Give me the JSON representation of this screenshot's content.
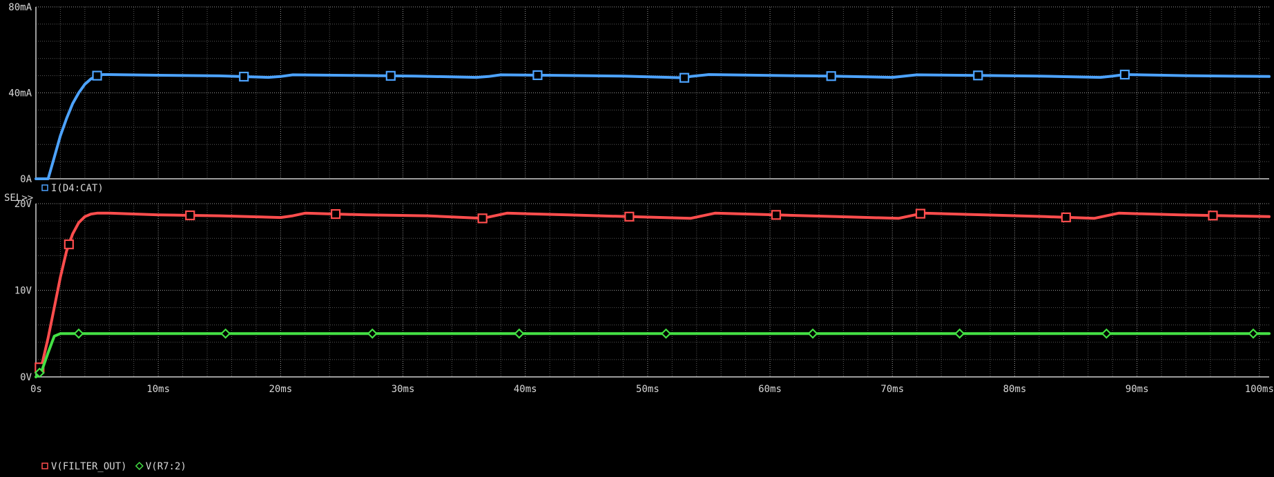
{
  "colors": {
    "background": "#000000",
    "axis": "#cfcfcf",
    "grid_major": "#9a9a9a",
    "grid_minor": "#5a5a5a",
    "label": "#d8d8d8",
    "current_trace": "#4da3ff",
    "filter_out_trace": "#ff4d4d",
    "r7_trace": "#44e044"
  },
  "sel_marker": "SEL>>",
  "chart_data": [
    {
      "type": "line",
      "title": "",
      "xlabel": "",
      "ylabel": "",
      "xlim": [
        0,
        100.8
      ],
      "ylim": [
        0,
        80
      ],
      "x_ticks": [
        0,
        10,
        20,
        30,
        40,
        50,
        60,
        70,
        80,
        90,
        100
      ],
      "x_tick_labels": [
        "0s",
        "10ms",
        "20ms",
        "30ms",
        "40ms",
        "50ms",
        "60ms",
        "70ms",
        "80ms",
        "90ms",
        "100ms"
      ],
      "y_ticks": [
        0,
        40,
        80
      ],
      "y_tick_labels": [
        "0A",
        "40mA",
        "80mA"
      ],
      "grid": true,
      "legend_position": "bottom-left",
      "series": [
        {
          "name": "I(D4:CAT)",
          "marker": "square",
          "color": "#4da3ff",
          "x": [
            0,
            0.5,
            1.0,
            1.5,
            2.0,
            2.5,
            3.0,
            3.5,
            4.0,
            4.5,
            5.0,
            5.5,
            6.0,
            10.0,
            15.0,
            19.0,
            20.0,
            21.0,
            26.0,
            31.0,
            36.0,
            37.0,
            38.0,
            43.0,
            48.0,
            53.0,
            53.5,
            55.0,
            60.0,
            65.0,
            70.0,
            71.0,
            72.0,
            77.0,
            82.0,
            87.0,
            88.0,
            89.0,
            94.0,
            100.8
          ],
          "y": [
            0,
            0,
            0,
            10,
            20,
            28,
            35,
            40,
            44,
            46.5,
            48,
            48.5,
            48.5,
            48.2,
            47.9,
            47.2,
            47.6,
            48.4,
            48.1,
            47.8,
            47.2,
            47.6,
            48.4,
            48.1,
            47.8,
            47.0,
            47.6,
            48.5,
            48.1,
            47.8,
            47.2,
            47.8,
            48.4,
            48.1,
            47.8,
            47.2,
            47.8,
            48.5,
            48.0,
            47.6
          ],
          "marker_x": [
            5.0,
            17.0,
            29.0,
            41.0,
            53.0,
            65.0,
            77.0,
            89.0
          ]
        }
      ]
    },
    {
      "type": "line",
      "title": "",
      "xlabel": "",
      "ylabel": "",
      "xlim": [
        0,
        100.8
      ],
      "ylim": [
        0,
        20
      ],
      "x_ticks": [
        0,
        10,
        20,
        30,
        40,
        50,
        60,
        70,
        80,
        90,
        100
      ],
      "x_tick_labels": [
        "0s",
        "10ms",
        "20ms",
        "30ms",
        "40ms",
        "50ms",
        "60ms",
        "70ms",
        "80ms",
        "90ms",
        "100ms"
      ],
      "y_ticks": [
        0,
        10,
        20
      ],
      "y_tick_labels": [
        "0V",
        "10V",
        "20V"
      ],
      "grid": true,
      "legend_position": "bottom-left",
      "series": [
        {
          "name": "V(FILTER_OUT)",
          "marker": "square",
          "color": "#ff4d4d",
          "x": [
            0,
            0.5,
            1.0,
            1.5,
            2.0,
            2.5,
            3.0,
            3.5,
            4.0,
            4.5,
            5.0,
            6.0,
            10.0,
            15.0,
            20.0,
            21.0,
            22.0,
            27.0,
            32.0,
            36.5,
            37.5,
            38.5,
            43.5,
            48.5,
            53.5,
            54.5,
            55.5,
            60.5,
            65.5,
            70.5,
            71.5,
            72.5,
            77.5,
            82.5,
            86.5,
            87.5,
            88.5,
            93.5,
            100.8
          ],
          "y": [
            0.5,
            1.5,
            4.5,
            8.0,
            11.5,
            14.5,
            16.5,
            17.8,
            18.5,
            18.8,
            18.9,
            18.9,
            18.7,
            18.6,
            18.4,
            18.6,
            18.9,
            18.7,
            18.6,
            18.3,
            18.6,
            18.9,
            18.7,
            18.5,
            18.3,
            18.6,
            18.9,
            18.7,
            18.5,
            18.3,
            18.6,
            18.9,
            18.7,
            18.5,
            18.3,
            18.6,
            18.9,
            18.7,
            18.5
          ],
          "marker_x": [
            0.3,
            2.7,
            12.6,
            24.5,
            36.5,
            48.5,
            60.5,
            72.3,
            84.2,
            96.2
          ]
        },
        {
          "name": "V(R7:2)",
          "marker": "diamond",
          "color": "#44e044",
          "x": [
            0,
            0.5,
            1.0,
            1.5,
            2.0,
            2.5,
            100.8
          ],
          "y": [
            0,
            0.8,
            2.8,
            4.7,
            5.0,
            5.0,
            5.0
          ],
          "marker_x": [
            0.3,
            3.5,
            15.5,
            27.5,
            39.5,
            51.5,
            63.5,
            75.5,
            87.5,
            99.5
          ]
        }
      ]
    }
  ]
}
